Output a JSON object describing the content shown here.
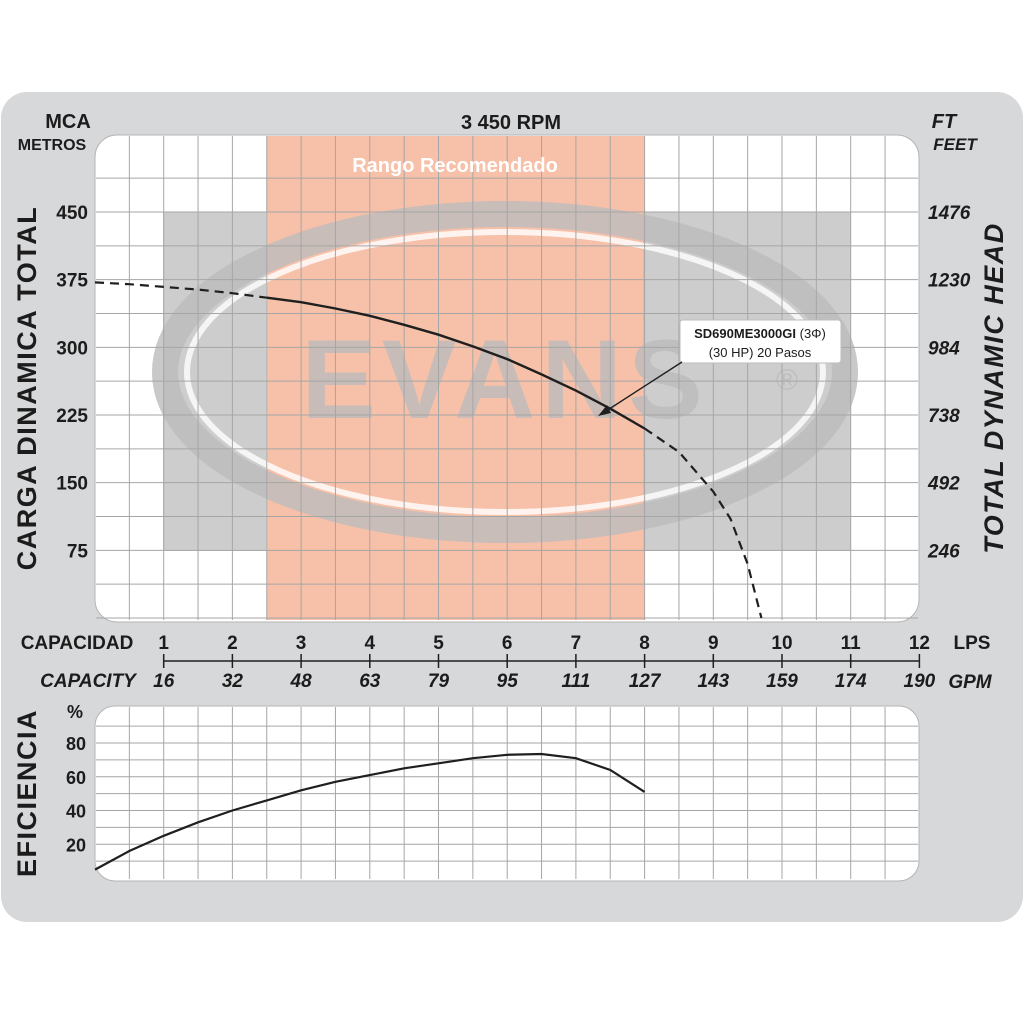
{
  "colors": {
    "frame": "#d7d8da",
    "panel": "#ffffff",
    "grid": "#a6a6a6",
    "recommended_band": "#f4a888",
    "watermark": "#bcbcbc",
    "curve": "#1f1f1f"
  },
  "header": {
    "left_unit": "MCA",
    "left_unit2": "METROS",
    "center": "3 450 RPM",
    "right_unit": "FT",
    "right_unit2": "FEET"
  },
  "watermark": {
    "text": "EVANS",
    "mark": "®"
  },
  "recommended_range": {
    "label": "Rango Recomendado",
    "from_lps": 2.5,
    "to_lps": 8
  },
  "capacity_axis": {
    "left_label": "CAPACIDAD",
    "left_label_en": "CAPACITY",
    "unit_lps": "LPS",
    "unit_gpm": "GPM",
    "lps_ticks": [
      "1",
      "2",
      "3",
      "4",
      "5",
      "6",
      "7",
      "8",
      "9",
      "10",
      "11",
      "12"
    ],
    "gpm_ticks": [
      "16",
      "32",
      "48",
      "63",
      "79",
      "95",
      "111",
      "127",
      "143",
      "159",
      "174",
      "190"
    ]
  },
  "annotation": {
    "model": "SD690ME3000GI",
    "phase": " (3Φ)",
    "line2": "(30 HP) 20 Pasos"
  },
  "chart_data": [
    {
      "type": "line",
      "title": "",
      "xlabel": "CAPACIDAD (LPS)",
      "ylabel": "CARGA DINAMICA TOTAL",
      "ylabel_right": "TOTAL DYNAMIC HEAD",
      "xlim": [
        0,
        12
      ],
      "ylim": [
        0,
        450
      ],
      "y_ticks": [
        "75",
        "150",
        "225",
        "300",
        "375",
        "450"
      ],
      "y_ticks_right": [
        "246",
        "492",
        "738",
        "984",
        "1230",
        "1476"
      ],
      "grid": true,
      "series": [
        {
          "name": "SD690ME3000GI",
          "x": [
            0,
            0.5,
            1,
            1.5,
            2,
            2.5,
            3,
            3.5,
            4,
            4.5,
            5,
            5.5,
            6,
            6.5,
            7,
            7.5,
            8,
            8.5,
            9,
            9.25,
            9.5,
            9.7
          ],
          "y": [
            372,
            370,
            367,
            364,
            360,
            355,
            350,
            343,
            335,
            325,
            314,
            301,
            287,
            270,
            252,
            232,
            210,
            184,
            140,
            110,
            60,
            0
          ],
          "solid_range": [
            2.5,
            8
          ]
        }
      ]
    },
    {
      "type": "line",
      "title": "",
      "xlabel": "CAPACIDAD (LPS)",
      "ylabel": "EFICIENCIA",
      "y_unit": "%",
      "xlim": [
        0,
        12
      ],
      "ylim": [
        0,
        90
      ],
      "y_ticks": [
        "20",
        "40",
        "60",
        "80"
      ],
      "grid": true,
      "series": [
        {
          "name": "Eficiencia",
          "x": [
            0,
            0.5,
            1,
            1.5,
            2,
            2.5,
            3,
            3.5,
            4,
            4.5,
            5,
            5.5,
            6,
            6.5,
            7,
            7.5,
            8
          ],
          "y": [
            5,
            16,
            25,
            33,
            40,
            46,
            52,
            57,
            61,
            65,
            68,
            71,
            73,
            73.5,
            71,
            64,
            51
          ]
        }
      ]
    }
  ]
}
